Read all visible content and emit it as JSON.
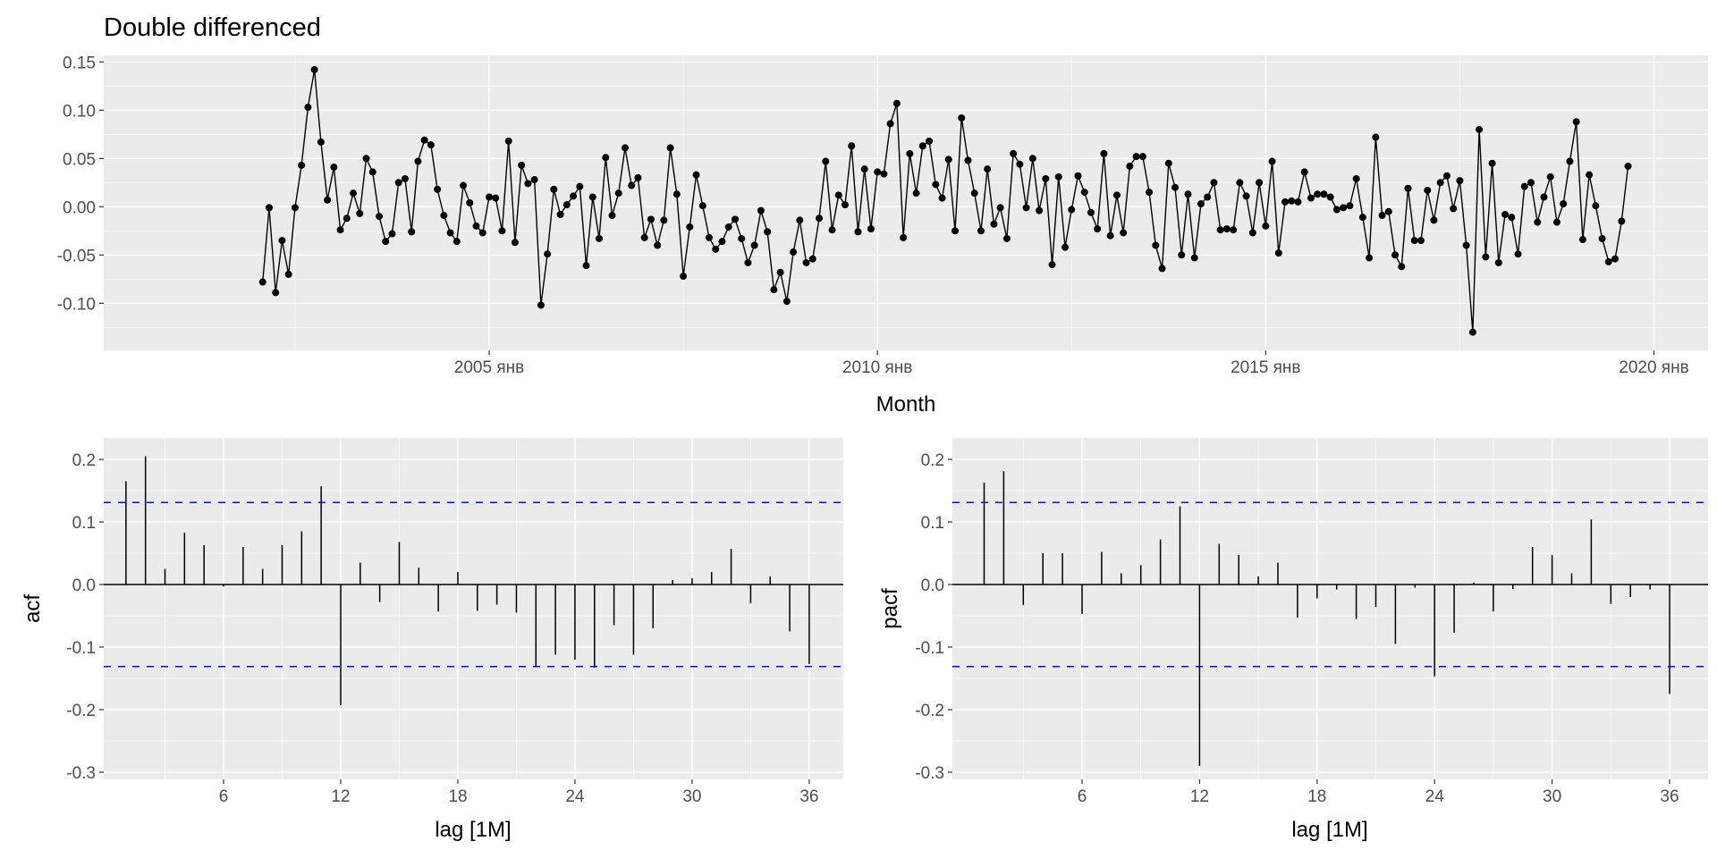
{
  "chart_data": [
    {
      "type": "line",
      "title": "Double differenced",
      "xlabel": "Month",
      "ylabel": "",
      "x_start": "2002-02",
      "x_frequency": "monthly",
      "x_ticks": [
        {
          "date": "2005-01",
          "label": "2005 янв"
        },
        {
          "date": "2010-01",
          "label": "2010 янв"
        },
        {
          "date": "2015-01",
          "label": "2015 янв"
        },
        {
          "date": "2020-01",
          "label": "2020 янв"
        }
      ],
      "y_ticks": [
        "0.15",
        "0.10",
        "0.05",
        "0.00",
        "-0.05",
        "-0.10"
      ],
      "ylim": [
        -0.142,
        0.166
      ],
      "grid": true,
      "markers": true,
      "values": [
        -0.078,
        -0.001,
        -0.089,
        -0.035,
        -0.07,
        -0.001,
        0.043,
        0.103,
        0.142,
        0.067,
        0.007,
        0.041,
        -0.024,
        -0.012,
        0.014,
        -0.007,
        0.05,
        0.036,
        -0.01,
        -0.036,
        -0.028,
        0.025,
        0.029,
        -0.026,
        0.047,
        0.069,
        0.064,
        0.018,
        -0.009,
        -0.027,
        -0.036,
        0.022,
        0.004,
        -0.02,
        -0.027,
        0.01,
        0.009,
        -0.025,
        0.068,
        -0.037,
        0.043,
        0.024,
        0.028,
        -0.102,
        -0.049,
        0.018,
        -0.008,
        0.002,
        0.011,
        0.021,
        -0.061,
        0.01,
        -0.033,
        0.051,
        -0.009,
        0.014,
        0.061,
        0.022,
        0.03,
        -0.032,
        -0.013,
        -0.04,
        -0.014,
        0.061,
        0.013,
        -0.072,
        -0.021,
        0.033,
        0.001,
        -0.032,
        -0.044,
        -0.036,
        -0.021,
        -0.013,
        -0.033,
        -0.058,
        -0.04,
        -0.004,
        -0.026,
        -0.086,
        -0.068,
        -0.098,
        -0.047,
        -0.014,
        -0.058,
        -0.054,
        -0.012,
        0.047,
        -0.024,
        0.012,
        0.002,
        0.063,
        -0.026,
        0.039,
        -0.023,
        0.036,
        0.034,
        0.086,
        0.107,
        -0.032,
        0.055,
        0.014,
        0.063,
        0.068,
        0.023,
        0.009,
        0.049,
        -0.025,
        0.092,
        0.048,
        0.014,
        -0.025,
        0.039,
        -0.018,
        -0.001,
        -0.033,
        0.055,
        0.044,
        -0.001,
        0.05,
        -0.004,
        0.029,
        -0.06,
        0.031,
        -0.042,
        -0.003,
        0.032,
        0.015,
        -0.006,
        -0.023,
        0.055,
        -0.03,
        0.012,
        -0.027,
        0.042,
        0.052,
        0.052,
        0.015,
        -0.04,
        -0.064,
        0.045,
        0.02,
        -0.05,
        0.013,
        -0.053,
        0.003,
        0.01,
        0.025,
        -0.024,
        -0.023,
        -0.024,
        0.025,
        0.011,
        -0.027,
        0.025,
        -0.02,
        0.047,
        -0.048,
        0.005,
        0.006,
        0.005,
        0.036,
        0.009,
        0.013,
        0.013,
        0.01,
        -0.003,
        -0.001,
        0.001,
        0.029,
        -0.011,
        -0.053,
        0.072,
        -0.009,
        -0.005,
        -0.05,
        -0.062,
        0.019,
        -0.035,
        -0.035,
        0.017,
        -0.014,
        0.025,
        0.032,
        -0.002,
        0.027,
        -0.04,
        -0.13,
        0.08,
        -0.052,
        0.045,
        -0.058,
        -0.008,
        -0.011,
        -0.049,
        0.021,
        0.025,
        -0.016,
        0.01,
        0.031,
        -0.016,
        0.003,
        0.047,
        0.088,
        -0.034,
        0.033,
        0.001,
        -0.033,
        -0.057,
        -0.054,
        -0.015,
        0.042
      ]
    },
    {
      "type": "bar",
      "xlabel": "lag [1M]",
      "ylabel": "acf",
      "x_ticks": [
        "6",
        "12",
        "18",
        "24",
        "30",
        "36"
      ],
      "y_ticks": [
        "0.2",
        "0.1",
        "0.0",
        "-0.1",
        "-0.2",
        "-0.3"
      ],
      "ylim": [
        -0.312,
        0.235
      ],
      "conf_bound": 0.131,
      "conf_color": "#0000FF",
      "lags": [
        1,
        2,
        3,
        4,
        5,
        6,
        7,
        8,
        9,
        10,
        11,
        12,
        13,
        14,
        15,
        16,
        17,
        18,
        19,
        20,
        21,
        22,
        23,
        24,
        25,
        26,
        27,
        28,
        29,
        30,
        31,
        32,
        33,
        34,
        35,
        36
      ],
      "values": [
        0.165,
        0.205,
        0.025,
        0.083,
        0.063,
        -0.003,
        0.06,
        0.025,
        0.063,
        0.085,
        0.157,
        -0.193,
        0.035,
        -0.028,
        0.068,
        0.027,
        -0.043,
        0.02,
        -0.042,
        -0.032,
        -0.045,
        -0.13,
        -0.112,
        -0.12,
        -0.133,
        -0.065,
        -0.112,
        -0.07,
        0.007,
        0.01,
        0.02,
        0.057,
        -0.03,
        0.013,
        -0.075,
        -0.127
      ]
    },
    {
      "type": "bar",
      "xlabel": "lag [1M]",
      "ylabel": "pacf",
      "x_ticks": [
        "6",
        "12",
        "18",
        "24",
        "30",
        "36"
      ],
      "y_ticks": [
        "0.2",
        "0.1",
        "0.0",
        "-0.1",
        "-0.2",
        "-0.3"
      ],
      "ylim": [
        -0.312,
        0.235
      ],
      "conf_bound": 0.131,
      "conf_color": "#0000FF",
      "lags": [
        1,
        2,
        3,
        4,
        5,
        6,
        7,
        8,
        9,
        10,
        11,
        12,
        13,
        14,
        15,
        16,
        17,
        18,
        19,
        20,
        21,
        22,
        23,
        24,
        25,
        26,
        27,
        28,
        29,
        30,
        31,
        32,
        33,
        34,
        35,
        36
      ],
      "values": [
        0.163,
        0.181,
        -0.033,
        0.05,
        0.05,
        -0.047,
        0.052,
        0.018,
        0.031,
        0.072,
        0.125,
        -0.29,
        0.065,
        0.047,
        0.013,
        0.035,
        -0.053,
        -0.022,
        -0.008,
        -0.055,
        -0.036,
        -0.095,
        -0.005,
        -0.147,
        -0.077,
        0.003,
        -0.043,
        -0.007,
        0.06,
        0.047,
        0.018,
        0.104,
        -0.031,
        -0.02,
        -0.008,
        -0.175
      ]
    }
  ]
}
